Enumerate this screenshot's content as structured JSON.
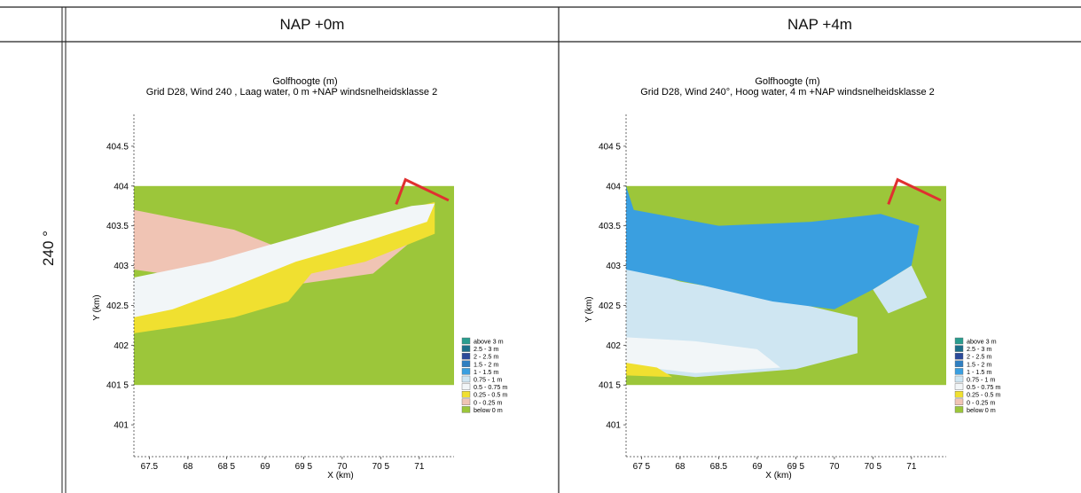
{
  "table": {
    "col_headers": [
      "NAP +0m",
      "NAP +4m"
    ],
    "row_label": "240 °"
  },
  "colors": {
    "above_3": "#2a9d8f",
    "2_5_3": "#1d6f8a",
    "2_2_5": "#2b4a9a",
    "1_5_2": "#2f7fc1",
    "1_1_5": "#3a9fe0",
    "0_75_1": "#cfe6f2",
    "0_5_0_75": "#f2f6f8",
    "0_25_0_5": "#f0e030",
    "0_0_25": "#f0c4b4",
    "below_0": "#9cc63a",
    "structure": "#e03030"
  },
  "legend_entries": [
    "above 3 m",
    "2.5 - 3 m",
    "2 - 2.5 m",
    "1.5 - 2 m",
    "1 - 1.5 m",
    "0.75 - 1 m",
    "0.5 - 0.75 m",
    "0.25 - 0.5 m",
    "0 - 0.25 m",
    "below 0 m"
  ],
  "chart_data": [
    {
      "type": "heatmap",
      "title": "Golfhoogte (m)",
      "subtitle": "Grid  D28, Wind 240 , Laag water, 0 m +NAP windsnelheidsklasse 2",
      "xlabel": "X (km)",
      "ylabel": "Y (km)",
      "xlim": [
        67.3,
        71.45
      ],
      "ylim": [
        400.6,
        404.9
      ],
      "x_ticks": [
        "67.5",
        "68",
        "68 5",
        "69",
        "69 5",
        "70",
        "70 5",
        "71"
      ],
      "y_ticks": [
        "401",
        "401 5",
        "402",
        "402.5",
        "403",
        "403.5",
        "404",
        "404.5"
      ],
      "domain": {
        "x": [
          67.3,
          71.45
        ],
        "y": [
          401.5,
          404.0
        ]
      },
      "legend_placement": "right"
    },
    {
      "type": "heatmap",
      "title": "Golfhoogte (m)",
      "subtitle": "Grid  D28, Wind 240°, Hoog water, 4 m +NAP windsnelheidsklasse 2",
      "xlabel": "X (km)",
      "ylabel": "Y (km)",
      "xlim": [
        67.3,
        71.45
      ],
      "ylim": [
        400.6,
        404.9
      ],
      "x_ticks": [
        "67 5",
        "68",
        "68.5",
        "69",
        "69 5",
        "70",
        "70 5",
        "71"
      ],
      "y_ticks": [
        "401",
        "401 5",
        "402",
        "402 5",
        "403",
        "403.5",
        "404",
        "404 5"
      ],
      "domain": {
        "x": [
          67.3,
          71.45
        ],
        "y": [
          401.5,
          404.0
        ]
      },
      "legend_placement": "right"
    }
  ]
}
